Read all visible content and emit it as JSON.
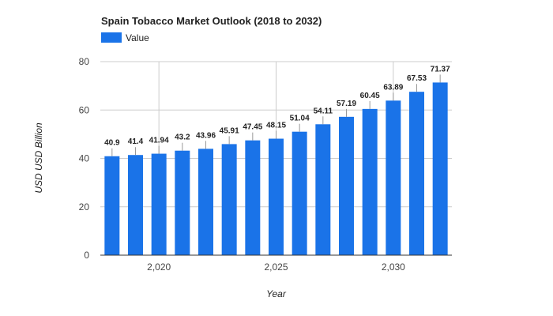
{
  "chart_data": {
    "type": "bar",
    "title": "Spain Tobacco Market Outlook (2018 to 2032)",
    "xlabel": "Year",
    "ylabel": "USD USD Billion",
    "legend": {
      "entries": [
        "Value"
      ],
      "position": "top-left"
    },
    "ylim": [
      0,
      80
    ],
    "yticks": [
      0,
      20,
      40,
      60,
      80
    ],
    "xticks": [
      2020,
      2025,
      2030
    ],
    "xtick_labels": [
      "2,020",
      "2,025",
      "2,030"
    ],
    "x": [
      2018,
      2019,
      2020,
      2021,
      2022,
      2023,
      2024,
      2025,
      2026,
      2027,
      2028,
      2029,
      2030,
      2031,
      2032
    ],
    "series": [
      {
        "name": "Value",
        "color": "#1a73e8",
        "values": [
          40.9,
          41.4,
          41.94,
          43.2,
          43.96,
          45.91,
          47.45,
          48.15,
          51.04,
          54.11,
          57.19,
          60.45,
          63.89,
          67.53,
          71.37
        ],
        "labels": [
          "40.9",
          "41.4",
          "41.94",
          "43.2",
          "43.96",
          "45.91",
          "47.45",
          "48.15",
          "51.04",
          "54.11",
          "57.19",
          "60.45",
          "63.89",
          "67.53",
          "71.37"
        ]
      }
    ],
    "grid": true,
    "bar_color": "#1a73e8",
    "grid_color": "#cccccc"
  }
}
